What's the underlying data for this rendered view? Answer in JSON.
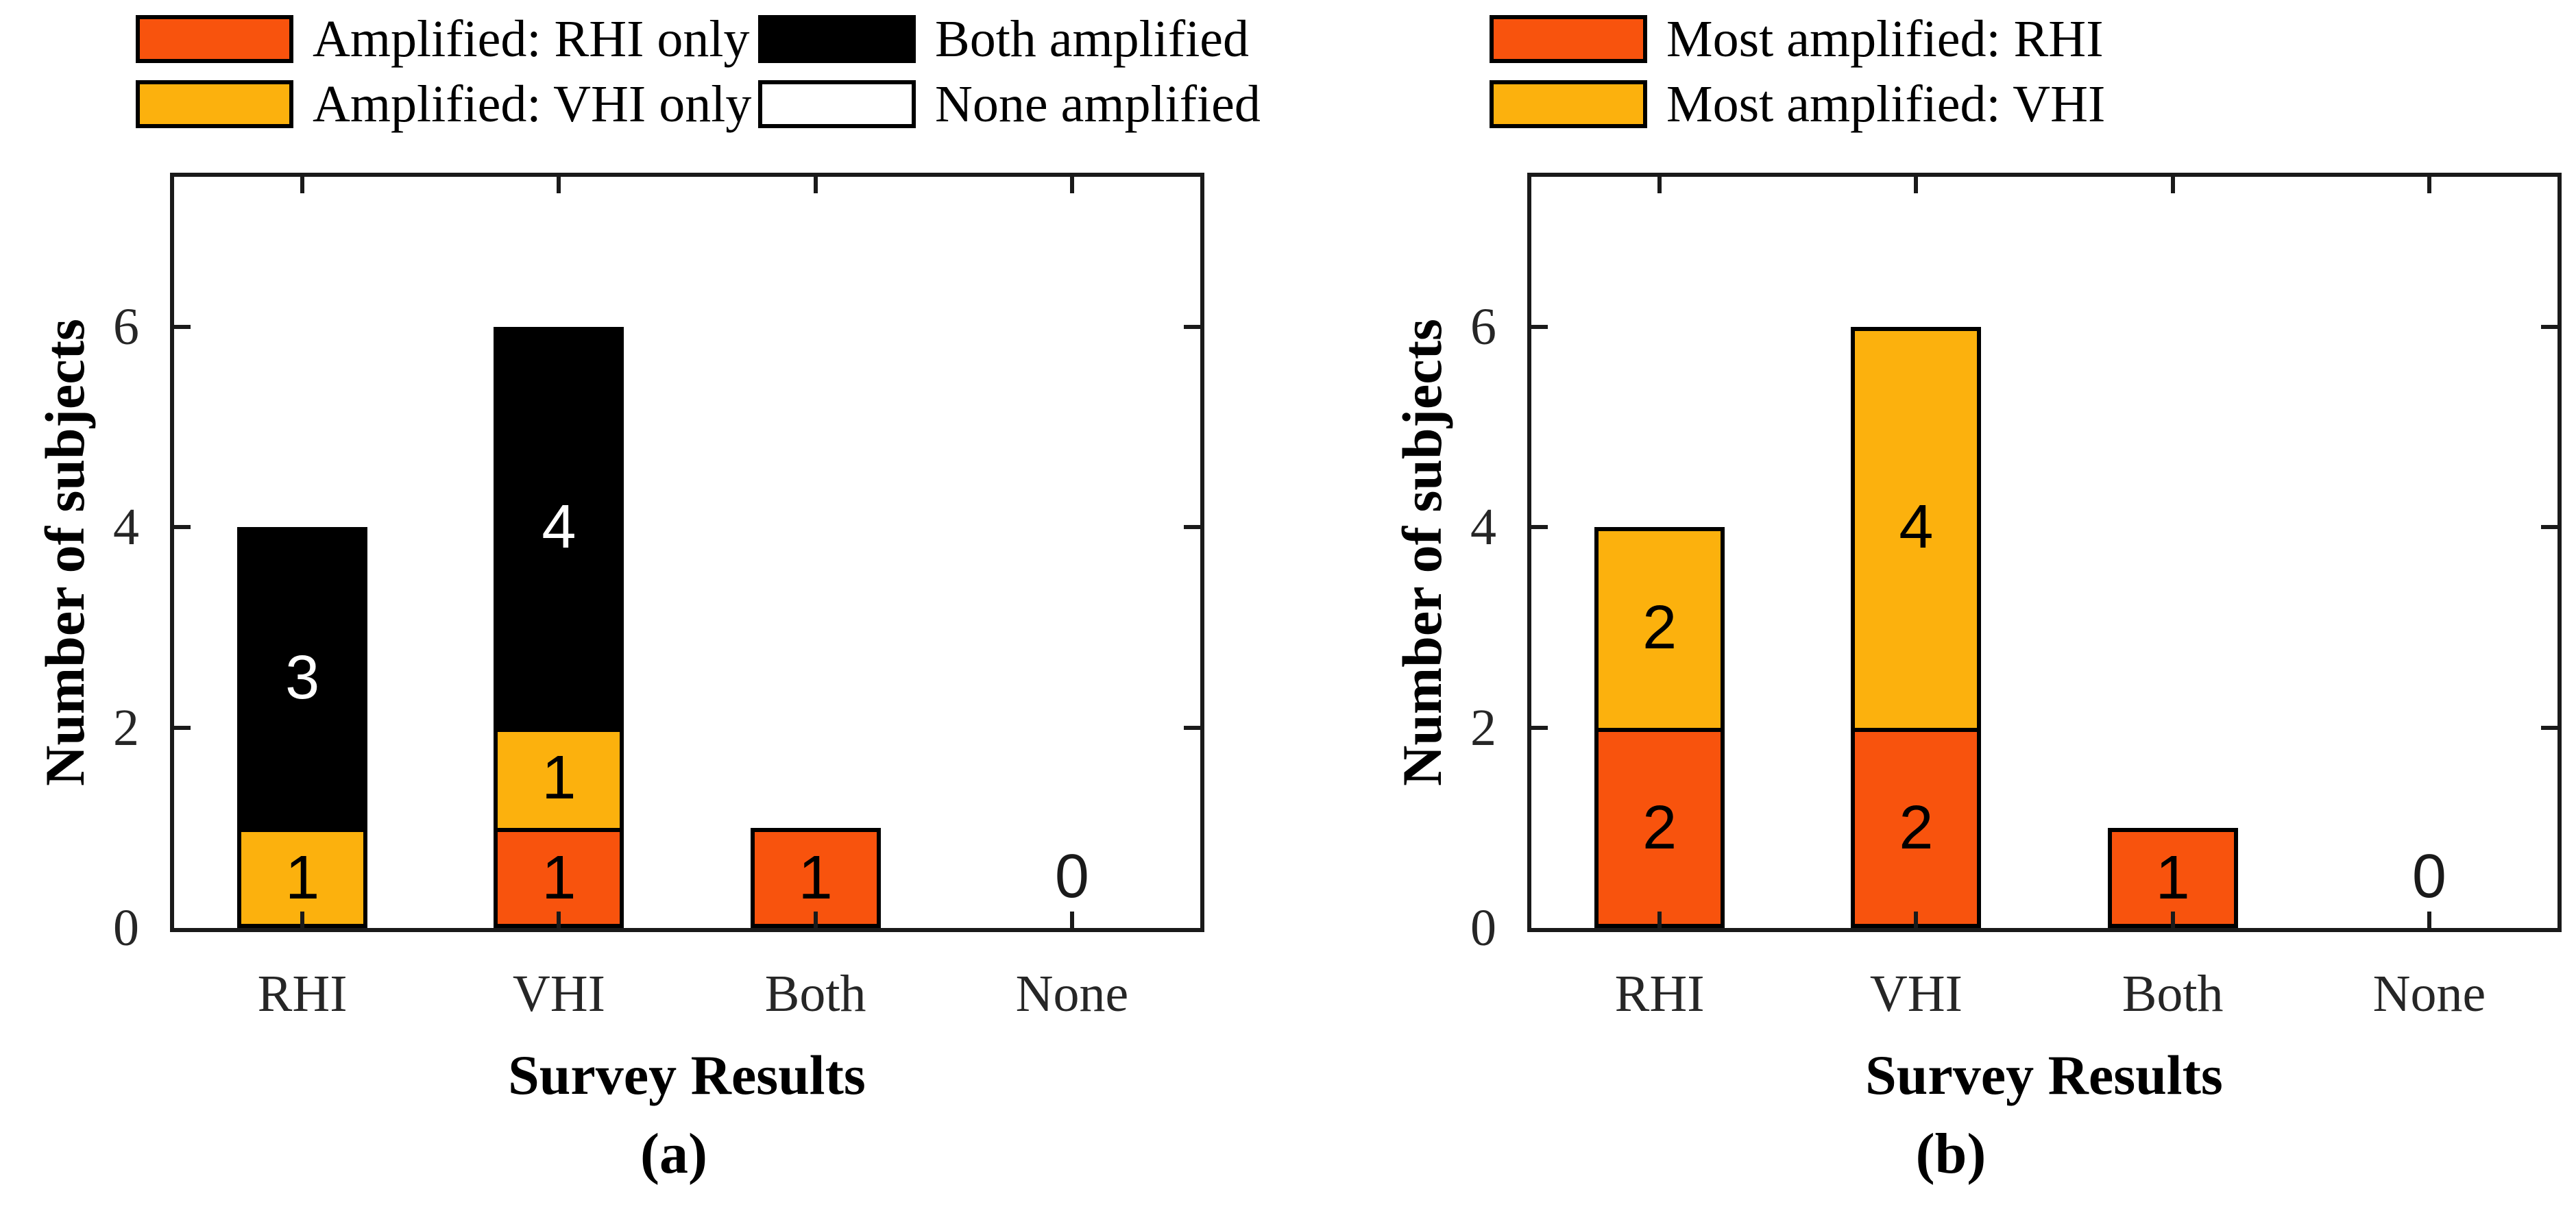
{
  "figure_title": "",
  "colors": {
    "rhi_orange": "#F8530D",
    "vhi_amber": "#FCB10D",
    "both_black": "#000000",
    "none_white": "#FFFFFF",
    "axis": "#1a1a1a",
    "tick_text": "#262626"
  },
  "chart_data": [
    {
      "id": "a",
      "type": "bar",
      "stacked": true,
      "caption": "(a)",
      "xlabel": "Survey Results",
      "ylabel": "Number of subjects",
      "categories": [
        "RHI",
        "VHI",
        "Both",
        "None"
      ],
      "yticks": [
        0,
        2,
        4,
        6
      ],
      "ylim": [
        0,
        7.5
      ],
      "grid": false,
      "legend_position": "top",
      "legend_columns": 2,
      "zero_label": "0",
      "legend": [
        {
          "label": "Amplified: RHI only",
          "color": "#F8530D"
        },
        {
          "label": "Amplified: VHI only",
          "color": "#FCB10D"
        },
        {
          "label": "Both amplified",
          "color": "#000000"
        },
        {
          "label": "None amplified",
          "color": "#FFFFFF"
        }
      ],
      "series": [
        {
          "name": "Amplified: RHI only",
          "color": "#F8530D",
          "label_color": "#000000",
          "values": [
            0,
            1,
            1,
            0
          ]
        },
        {
          "name": "Amplified: VHI only",
          "color": "#FCB10D",
          "label_color": "#000000",
          "values": [
            1,
            1,
            0,
            0
          ]
        },
        {
          "name": "Both amplified",
          "color": "#000000",
          "label_color": "#FFFFFF",
          "values": [
            3,
            4,
            0,
            0
          ]
        },
        {
          "name": "None amplified",
          "color": "#FFFFFF",
          "label_color": "#000000",
          "values": [
            0,
            0,
            0,
            0
          ]
        }
      ]
    },
    {
      "id": "b",
      "type": "bar",
      "stacked": true,
      "caption": "(b)",
      "xlabel": "Survey Results",
      "ylabel": "Number of subjects",
      "categories": [
        "RHI",
        "VHI",
        "Both",
        "None"
      ],
      "yticks": [
        0,
        2,
        4,
        6
      ],
      "ylim": [
        0,
        7.5
      ],
      "grid": false,
      "legend_position": "top",
      "legend_columns": 1,
      "zero_label": "0",
      "legend": [
        {
          "label": "Most amplified: RHI",
          "color": "#F8530D"
        },
        {
          "label": "Most amplified: VHI",
          "color": "#FCB10D"
        }
      ],
      "series": [
        {
          "name": "Most amplified: RHI",
          "color": "#F8530D",
          "label_color": "#000000",
          "values": [
            2,
            2,
            1,
            0
          ]
        },
        {
          "name": "Most amplified: VHI",
          "color": "#FCB10D",
          "label_color": "#000000",
          "values": [
            2,
            4,
            0,
            0
          ]
        }
      ]
    }
  ]
}
